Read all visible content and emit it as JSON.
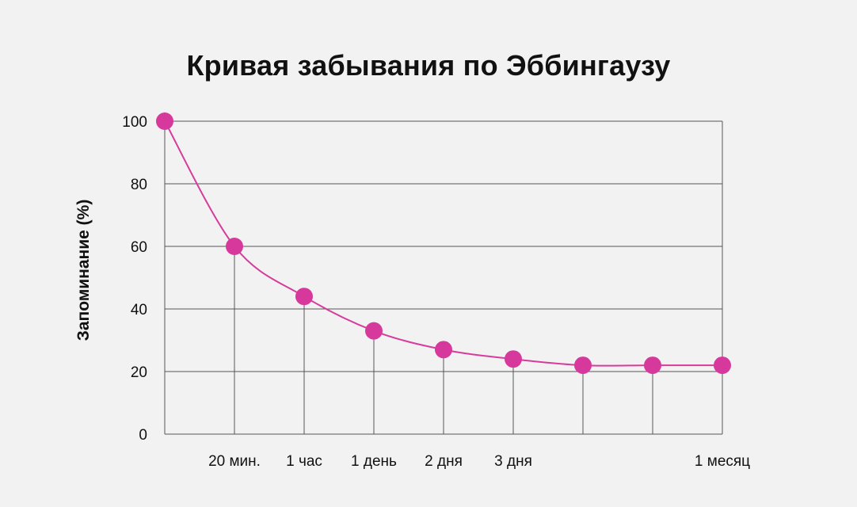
{
  "chart_data": {
    "type": "line",
    "title": "Кривая забывания по Эббингаузу",
    "ylabel": "Запоминание (%)",
    "xlabel": "",
    "ylim": [
      0,
      100
    ],
    "yticks": [
      0,
      20,
      40,
      60,
      80,
      100
    ],
    "x_tick_labels": [
      "",
      "20 мин.",
      "1 час",
      "1 день",
      "2 дня",
      "3 дня",
      "",
      "",
      "1 месяц"
    ],
    "values": [
      100,
      60,
      44,
      33,
      27,
      24,
      22,
      22,
      22
    ],
    "colors": {
      "line": "#d63c9b",
      "point": "#d6399b",
      "grid": "#555555"
    },
    "grid": true
  }
}
